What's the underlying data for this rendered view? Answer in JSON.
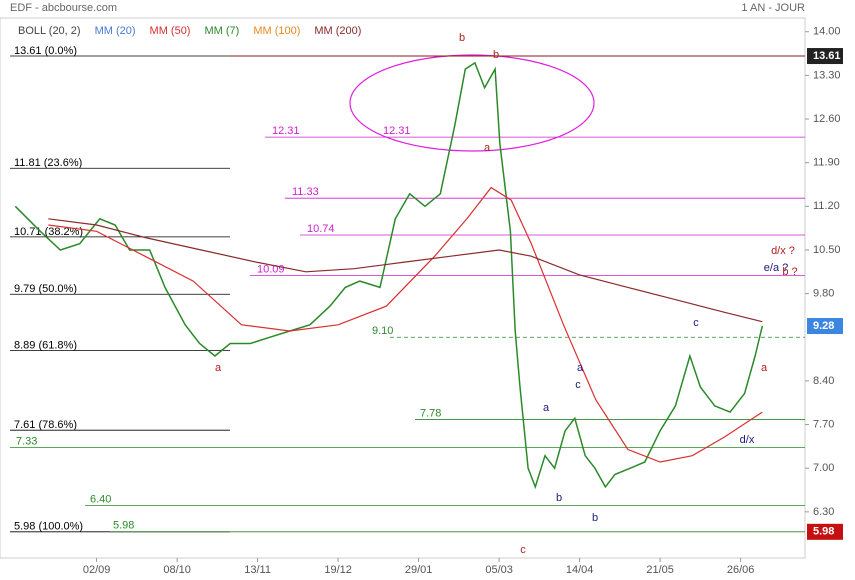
{
  "chart_data": {
    "type": "line",
    "title": "EDF - abcbourse.com",
    "subtitle": "1 AN - JOUR",
    "legend": [
      {
        "name": "BOLL (20, 2)",
        "color": "#444444"
      },
      {
        "name": "MM (20)",
        "color": "#4a78d8"
      },
      {
        "name": "MM (50)",
        "color": "#d83030"
      },
      {
        "name": "MM (7)",
        "color": "#2a8a2a"
      },
      {
        "name": "MM (100)",
        "color": "#e88a20"
      },
      {
        "name": "MM (200)",
        "color": "#8a2a2a"
      }
    ],
    "xlim": [
      0,
      100
    ],
    "xticks": [
      {
        "value": 12,
        "label": "02/09"
      },
      {
        "value": 22,
        "label": "08/10"
      },
      {
        "value": 32,
        "label": "13/11"
      },
      {
        "value": 42,
        "label": "19/12"
      },
      {
        "value": 52,
        "label": "29/01"
      },
      {
        "value": 62,
        "label": "05/03"
      },
      {
        "value": 72,
        "label": "14/04"
      },
      {
        "value": 82,
        "label": "21/05"
      },
      {
        "value": 92,
        "label": "26/06"
      }
    ],
    "ylim": [
      5.56,
      14.22
    ],
    "yticks": [
      {
        "value": 14,
        "label": "14.00"
      },
      {
        "value": 13.3,
        "label": "13.30"
      },
      {
        "value": 12.6,
        "label": "12.60"
      },
      {
        "value": 11.9,
        "label": "11.90"
      },
      {
        "value": 11.2,
        "label": "11.20"
      },
      {
        "value": 10.5,
        "label": "10.50"
      },
      {
        "value": 9.8,
        "label": "9.80"
      },
      {
        "value": 8.4,
        "label": "8.40"
      },
      {
        "value": 7.7,
        "label": "7.70"
      },
      {
        "value": 7,
        "label": "7.00"
      },
      {
        "value": 6.3,
        "label": "6.30"
      }
    ],
    "series": [
      {
        "name": "MM (7)",
        "color": "#2a8a2a",
        "x": [
          1.9,
          5,
          7.5,
          9.9,
          12.4,
          14.3,
          16.1,
          18.6,
          20.5,
          23,
          24.8,
          26.7,
          28.6,
          31.1,
          33.5,
          36,
          38.5,
          41,
          42.9,
          44.7,
          47.2,
          49.1,
          50.9,
          52.8,
          54.7,
          56.5,
          57.8,
          59,
          60.2,
          61.5,
          62.1,
          63.4,
          64,
          64.6,
          65.6,
          66.5,
          67.7,
          68.9,
          70.2,
          71.4,
          72.7,
          73.9,
          75.2,
          76.4,
          78.3,
          80.1,
          82,
          83.9,
          85.7,
          87,
          88.8,
          90.7,
          92.5,
          93.8,
          94.7
        ],
        "values": [
          11.2,
          10.8,
          10.5,
          10.6,
          11.0,
          10.9,
          10.5,
          10.5,
          9.9,
          9.3,
          9.0,
          8.8,
          9.0,
          9.0,
          9.1,
          9.2,
          9.3,
          9.6,
          9.9,
          10.0,
          9.9,
          11.0,
          11.4,
          11.2,
          11.4,
          12.5,
          13.4,
          13.5,
          13.1,
          13.4,
          12.2,
          10.8,
          9.2,
          8.3,
          7.0,
          6.7,
          7.2,
          7.0,
          7.6,
          7.8,
          7.2,
          7.0,
          6.7,
          6.9,
          7.0,
          7.1,
          7.6,
          8.0,
          8.8,
          8.3,
          8.0,
          7.9,
          8.2,
          8.8,
          9.28
        ]
      },
      {
        "name": "MM (50)",
        "color": "#d83030",
        "x": [
          6,
          12,
          18,
          24,
          30,
          36,
          42,
          48,
          54,
          58,
          61,
          63.5,
          66,
          70,
          74,
          78,
          82,
          86,
          90,
          94.7
        ],
        "values": [
          10.9,
          10.8,
          10.4,
          10.0,
          9.3,
          9.2,
          9.3,
          9.6,
          10.4,
          11.0,
          11.5,
          11.3,
          10.6,
          9.3,
          8.1,
          7.3,
          7.1,
          7.2,
          7.5,
          7.9
        ]
      },
      {
        "name": "MM (200)",
        "color": "#8a2a2a",
        "x": [
          6,
          12,
          18,
          25,
          32,
          38,
          44,
          50,
          56,
          62,
          66,
          72,
          78,
          84,
          90,
          94.7
        ],
        "values": [
          11.0,
          10.9,
          10.7,
          10.5,
          10.3,
          10.15,
          10.2,
          10.3,
          10.4,
          10.5,
          10.4,
          10.1,
          9.9,
          9.7,
          9.5,
          9.35
        ]
      }
    ],
    "levels": [
      {
        "value": 13.61,
        "label": "13.61 (0.0%)",
        "color": "#000000"
      },
      {
        "value": 11.81,
        "label": "11.81 (23.6%)",
        "color": "#000000"
      },
      {
        "value": 10.71,
        "label": "10.71 (38.2%)",
        "color": "#000000"
      },
      {
        "value": 9.79,
        "label": "9.79 (50.0%)",
        "color": "#000000"
      },
      {
        "value": 8.89,
        "label": "8.89 (61.8%)",
        "color": "#000000"
      },
      {
        "value": 7.61,
        "label": "7.61 (78.6%)",
        "color": "#000000"
      },
      {
        "value": 5.98,
        "label": "5.98 (100.0%)",
        "color": "#000000"
      },
      {
        "value": 12.31,
        "label": "12.31",
        "color": "#cc22cc"
      },
      {
        "value": 11.33,
        "label": "11.33",
        "color": "#cc22cc"
      },
      {
        "value": 10.74,
        "label": "10.74",
        "color": "#cc22cc"
      },
      {
        "value": 10.09,
        "label": "10.09",
        "color": "#cc22cc"
      },
      {
        "value": 9.1,
        "label": "9.10",
        "color": "#2a8a2a"
      },
      {
        "value": 7.78,
        "label": "7.78",
        "color": "#2a8a2a"
      },
      {
        "value": 7.33,
        "label": "7.33",
        "color": "#2a8a2a"
      },
      {
        "value": 6.4,
        "label": "6.40",
        "color": "#2a8a2a"
      },
      {
        "value": 5.98,
        "label": "5.98",
        "color": "#2a8a2a"
      }
    ],
    "price_tags": [
      13.61,
      9.28,
      5.98
    ],
    "price_tag_colors": [
      "#222222",
      "#3a86e0",
      "#c41010"
    ],
    "wave_labels": [
      "b",
      "a",
      "c",
      "a",
      "b",
      "a",
      "c",
      "a",
      "b",
      "b",
      "c",
      "d/x",
      "a",
      "d/x ?",
      "e/a ?",
      "b ?"
    ]
  }
}
